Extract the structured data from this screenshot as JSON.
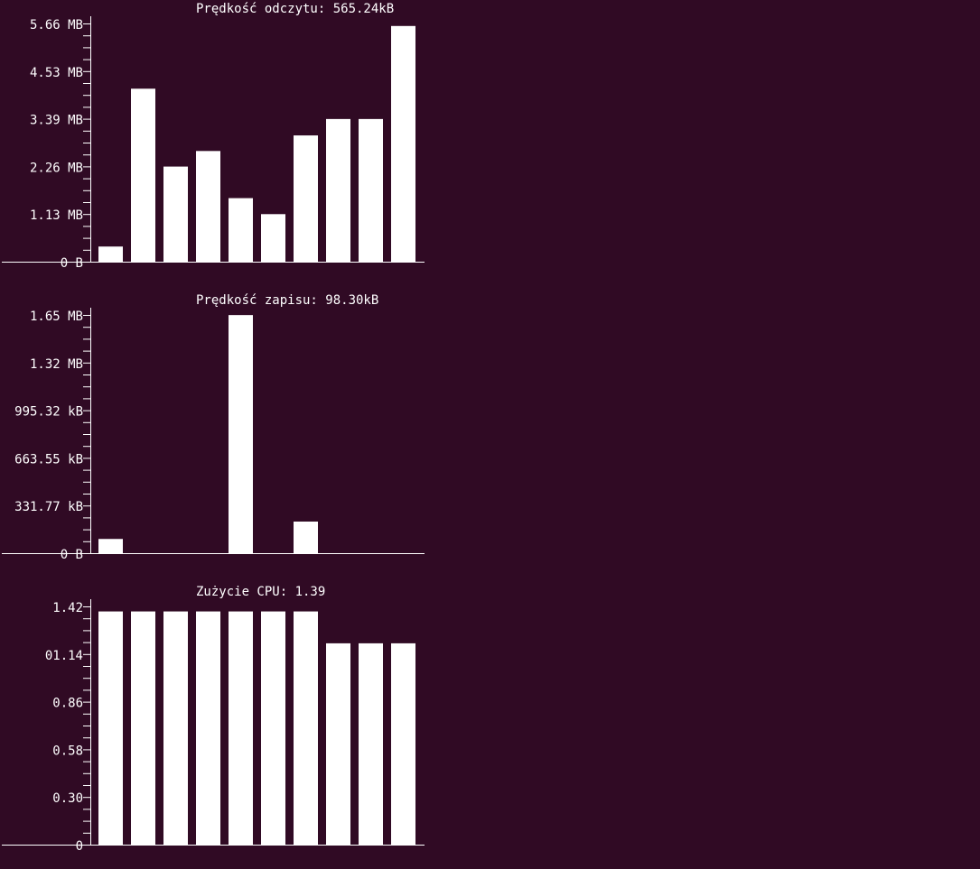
{
  "colors": {
    "background": "#300a24",
    "foreground": "#ffffff"
  },
  "chart_data": [
    {
      "type": "bar",
      "title": "Prędkość odczytu: 565.24kB",
      "unit": "MB",
      "ylim": [
        0,
        5.66
      ],
      "y_tick_labels": [
        "5.66 MB",
        "4.53 MB",
        "3.39 MB",
        "2.26 MB",
        "1.13 MB",
        "0 B"
      ],
      "values": [
        0.36,
        4.11,
        2.26,
        2.63,
        1.51,
        1.13,
        3.0,
        3.39,
        3.39,
        5.6
      ]
    },
    {
      "type": "bar",
      "title": "Prędkość zapisu: 98.30kB",
      "unit": "kB",
      "ylim": [
        0,
        1658.87
      ],
      "y_tick_labels": [
        "1.65 MB",
        "1.32 MB",
        "995.32 kB",
        "663.55 kB",
        "331.77 kB",
        "0 B"
      ],
      "values": [
        99,
        0,
        0,
        0,
        1658,
        0,
        220,
        0,
        0,
        0
      ]
    },
    {
      "type": "bar",
      "title": "Zużycie CPU: 1.39",
      "unit": "",
      "ylim": [
        0,
        1.42
      ],
      "y_tick_labels": [
        "1.42",
        "01.14",
        "0.86",
        "0.58",
        "0.30",
        "0"
      ],
      "values": [
        1.39,
        1.39,
        1.39,
        1.39,
        1.39,
        1.39,
        1.39,
        1.2,
        1.2,
        1.2
      ]
    }
  ]
}
